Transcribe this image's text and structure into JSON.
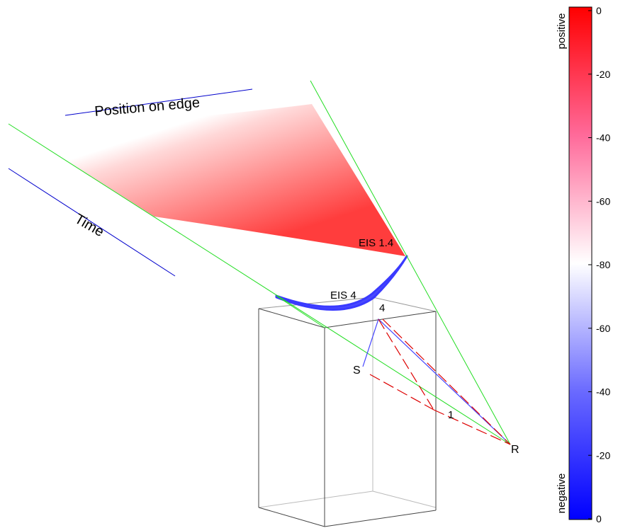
{
  "labels": {
    "position_axis": "Position on edge",
    "time_axis": "Time",
    "eis_top": "EIS 1.4",
    "eis_bottom": "EIS 4",
    "point_4": "4",
    "point_s": "S",
    "point_1": "1",
    "point_r": "R"
  },
  "colorbar": {
    "top_label": "positive",
    "bottom_label": "negative",
    "ticks": [
      "0",
      "-20",
      "-40",
      "-60",
      "-80",
      "-60",
      "-40",
      "-20",
      "0"
    ]
  },
  "colors": {
    "positive": "#ff0000",
    "neutral": "#ffffff",
    "negative": "#0000ff",
    "edge_lines": "#00dd00",
    "axis_lines": "#0000cc",
    "box_lines": "#555555",
    "ray_solid": "#4444ff",
    "ray_dashed": "#dd0000"
  }
}
